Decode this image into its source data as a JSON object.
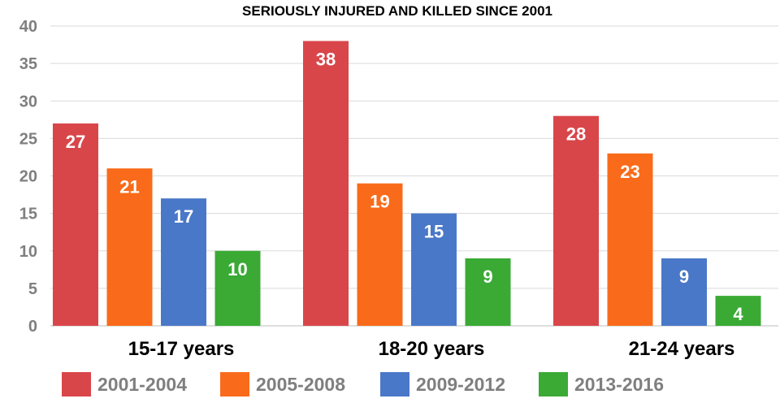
{
  "chart_data": {
    "type": "bar",
    "title": "SERIOUSLY INJURED AND KILLED SINCE 2001",
    "categories": [
      "15-17 years",
      "18-20 years",
      "21-24 years"
    ],
    "series": [
      {
        "name": "2001-2004",
        "color": "#d9464a",
        "values": [
          27,
          38,
          28
        ]
      },
      {
        "name": "2005-2008",
        "color": "#f96b1a",
        "values": [
          21,
          19,
          23
        ]
      },
      {
        "name": "2009-2012",
        "color": "#4a78c8",
        "values": [
          17,
          15,
          9
        ]
      },
      {
        "name": "2013-2016",
        "color": "#3aaa35",
        "values": [
          10,
          9,
          4
        ]
      }
    ],
    "yticks": [
      0,
      5,
      10,
      15,
      20,
      25,
      30,
      35,
      40
    ],
    "ylim": [
      0,
      40
    ],
    "grid": true,
    "legend_position": "bottom",
    "data_labels": true
  }
}
